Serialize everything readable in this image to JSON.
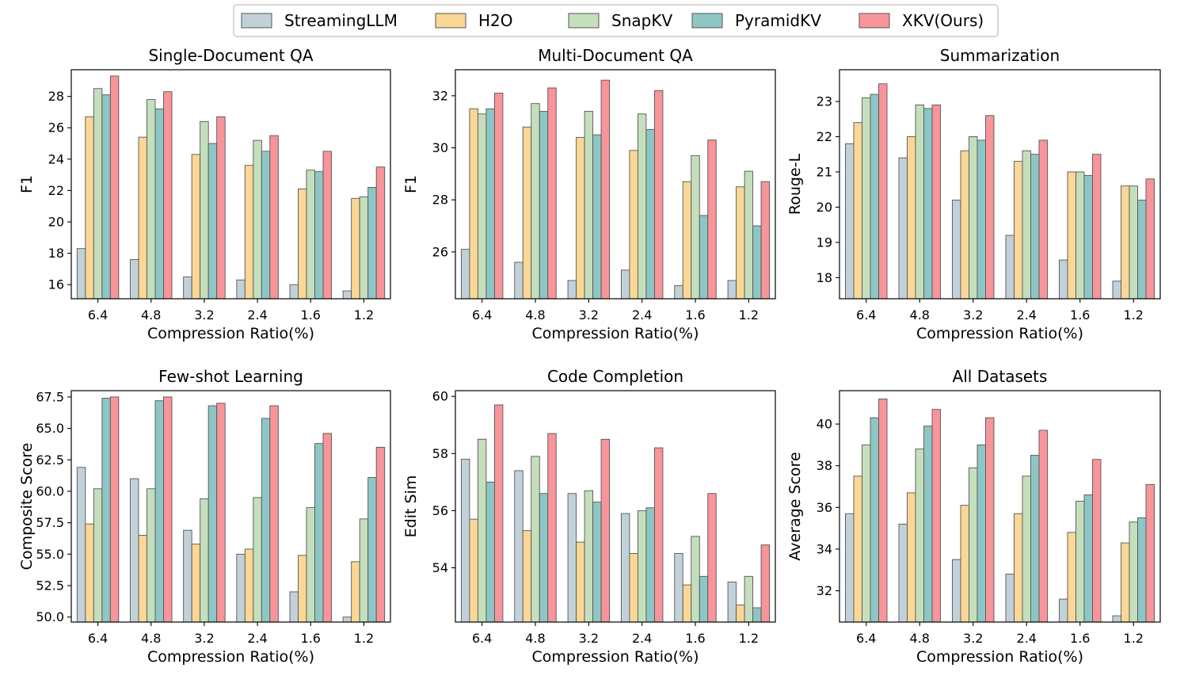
{
  "legend": [
    "StreamingLLM",
    "H2O",
    "SnapKV",
    "PyramidKV",
    "XKV(Ours)"
  ],
  "colors": [
    "#c2d1d9",
    "#fad796",
    "#c5dfbd",
    "#8ec6c5",
    "#f8959a"
  ],
  "chart_data": [
    {
      "type": "bar",
      "title": "Single-Document QA",
      "xlabel": "Compression Ratio(%)",
      "ylabel": "F1",
      "categories": [
        "6.4",
        "4.8",
        "3.2",
        "2.4",
        "1.6",
        "1.2"
      ],
      "ylim": [
        15.1,
        29.7
      ],
      "yticks": [
        16,
        18,
        20,
        22,
        24,
        26,
        28
      ],
      "ytick_labels": [
        "16",
        "18",
        "20",
        "22",
        "24",
        "26",
        "28"
      ],
      "series": [
        {
          "name": "StreamingLLM",
          "values": [
            18.3,
            17.6,
            16.5,
            16.3,
            16.0,
            15.6
          ]
        },
        {
          "name": "H2O",
          "values": [
            26.7,
            25.4,
            24.3,
            23.6,
            22.1,
            21.5
          ]
        },
        {
          "name": "SnapKV",
          "values": [
            28.5,
            27.8,
            26.4,
            25.2,
            23.3,
            21.6
          ]
        },
        {
          "name": "PyramidKV",
          "values": [
            28.1,
            27.2,
            25.0,
            24.5,
            23.2,
            22.2
          ]
        },
        {
          "name": "XKV(Ours)",
          "values": [
            29.3,
            28.3,
            26.7,
            25.5,
            24.5,
            23.5
          ]
        }
      ]
    },
    {
      "type": "bar",
      "title": "Multi-Document QA",
      "xlabel": "Compression Ratio(%)",
      "ylabel": "F1",
      "categories": [
        "6.4",
        "4.8",
        "3.2",
        "2.4",
        "1.6",
        "1.2"
      ],
      "ylim": [
        24.2,
        33.0
      ],
      "yticks": [
        26,
        28,
        30,
        32
      ],
      "ytick_labels": [
        "26",
        "28",
        "30",
        "32"
      ],
      "series": [
        {
          "name": "StreamingLLM",
          "values": [
            26.1,
            25.6,
            24.9,
            25.3,
            24.7,
            24.9
          ]
        },
        {
          "name": "H2O",
          "values": [
            31.5,
            30.8,
            30.4,
            29.9,
            28.7,
            28.5
          ]
        },
        {
          "name": "SnapKV",
          "values": [
            31.3,
            31.7,
            31.4,
            31.3,
            29.7,
            29.1
          ]
        },
        {
          "name": "PyramidKV",
          "values": [
            31.5,
            31.4,
            30.5,
            30.7,
            27.4,
            27.0
          ]
        },
        {
          "name": "XKV(Ours)",
          "values": [
            32.1,
            32.3,
            32.6,
            32.2,
            30.3,
            28.7
          ]
        }
      ]
    },
    {
      "type": "bar",
      "title": "Summarization",
      "xlabel": "Compression Ratio(%)",
      "ylabel": "Rouge-L",
      "categories": [
        "6.4",
        "4.8",
        "3.2",
        "2.4",
        "1.6",
        "1.2"
      ],
      "ylim": [
        17.4,
        23.9
      ],
      "yticks": [
        18,
        19,
        20,
        21,
        22,
        23
      ],
      "ytick_labels": [
        "18",
        "19",
        "20",
        "21",
        "22",
        "23"
      ],
      "series": [
        {
          "name": "StreamingLLM",
          "values": [
            21.8,
            21.4,
            20.2,
            19.2,
            18.5,
            17.9
          ]
        },
        {
          "name": "H2O",
          "values": [
            22.4,
            22.0,
            21.6,
            21.3,
            21.0,
            20.6
          ]
        },
        {
          "name": "SnapKV",
          "values": [
            23.1,
            22.9,
            22.0,
            21.6,
            21.0,
            20.6
          ]
        },
        {
          "name": "PyramidKV",
          "values": [
            23.2,
            22.8,
            21.9,
            21.5,
            20.9,
            20.2
          ]
        },
        {
          "name": "XKV(Ours)",
          "values": [
            23.5,
            22.9,
            22.6,
            21.9,
            21.5,
            20.8
          ]
        }
      ]
    },
    {
      "type": "bar",
      "title": "Few-shot Learning",
      "xlabel": "Compression Ratio(%)",
      "ylabel": "Composite Score",
      "categories": [
        "6.4",
        "4.8",
        "3.2",
        "2.4",
        "1.6",
        "1.2"
      ],
      "ylim": [
        49.6,
        68.0
      ],
      "yticks": [
        50.0,
        52.5,
        55.0,
        57.5,
        60.0,
        62.5,
        65.0,
        67.5
      ],
      "ytick_labels": [
        "50.0",
        "52.5",
        "55.0",
        "57.5",
        "60.0",
        "62.5",
        "65.0",
        "67.5"
      ],
      "series": [
        {
          "name": "StreamingLLM",
          "values": [
            61.9,
            61.0,
            56.9,
            55.0,
            52.0,
            50.0
          ]
        },
        {
          "name": "H2O",
          "values": [
            57.4,
            56.5,
            55.8,
            55.4,
            54.9,
            54.4
          ]
        },
        {
          "name": "SnapKV",
          "values": [
            60.2,
            60.2,
            59.4,
            59.5,
            58.7,
            57.8
          ]
        },
        {
          "name": "PyramidKV",
          "values": [
            67.4,
            67.2,
            66.8,
            65.8,
            63.8,
            61.1
          ]
        },
        {
          "name": "XKV(Ours)",
          "values": [
            67.5,
            67.5,
            67.0,
            66.8,
            64.6,
            63.5
          ]
        }
      ]
    },
    {
      "type": "bar",
      "title": "Code Completion",
      "xlabel": "Compression Ratio(%)",
      "ylabel": "Edit Sim",
      "categories": [
        "6.4",
        "4.8",
        "3.2",
        "2.4",
        "1.6",
        "1.2"
      ],
      "ylim": [
        52.1,
        60.2
      ],
      "yticks": [
        54,
        56,
        58,
        60
      ],
      "ytick_labels": [
        "54",
        "56",
        "58",
        "60"
      ],
      "series": [
        {
          "name": "StreamingLLM",
          "values": [
            57.8,
            57.4,
            56.6,
            55.9,
            54.5,
            53.5
          ]
        },
        {
          "name": "H2O",
          "values": [
            55.7,
            55.3,
            54.9,
            54.5,
            53.4,
            52.7
          ]
        },
        {
          "name": "SnapKV",
          "values": [
            58.5,
            57.9,
            56.7,
            56.0,
            55.1,
            53.7
          ]
        },
        {
          "name": "PyramidKV",
          "values": [
            57.0,
            56.6,
            56.3,
            56.1,
            53.7,
            52.6
          ]
        },
        {
          "name": "XKV(Ours)",
          "values": [
            59.7,
            58.7,
            58.5,
            58.2,
            56.6,
            54.8
          ]
        }
      ]
    },
    {
      "type": "bar",
      "title": "All Datasets",
      "xlabel": "Compression Ratio(%)",
      "ylabel": "Average Score",
      "categories": [
        "6.4",
        "4.8",
        "3.2",
        "2.4",
        "1.6",
        "1.2"
      ],
      "ylim": [
        30.5,
        41.6
      ],
      "yticks": [
        32,
        34,
        36,
        38,
        40
      ],
      "ytick_labels": [
        "32",
        "34",
        "36",
        "38",
        "40"
      ],
      "series": [
        {
          "name": "StreamingLLM",
          "values": [
            35.7,
            35.2,
            33.5,
            32.8,
            31.6,
            30.8
          ]
        },
        {
          "name": "H2O",
          "values": [
            37.5,
            36.7,
            36.1,
            35.7,
            34.8,
            34.3
          ]
        },
        {
          "name": "SnapKV",
          "values": [
            39.0,
            38.8,
            37.9,
            37.5,
            36.3,
            35.3
          ]
        },
        {
          "name": "PyramidKV",
          "values": [
            40.3,
            39.9,
            39.0,
            38.5,
            36.6,
            35.5
          ]
        },
        {
          "name": "XKV(Ours)",
          "values": [
            41.2,
            40.7,
            40.3,
            39.7,
            38.3,
            37.1
          ]
        }
      ]
    }
  ]
}
